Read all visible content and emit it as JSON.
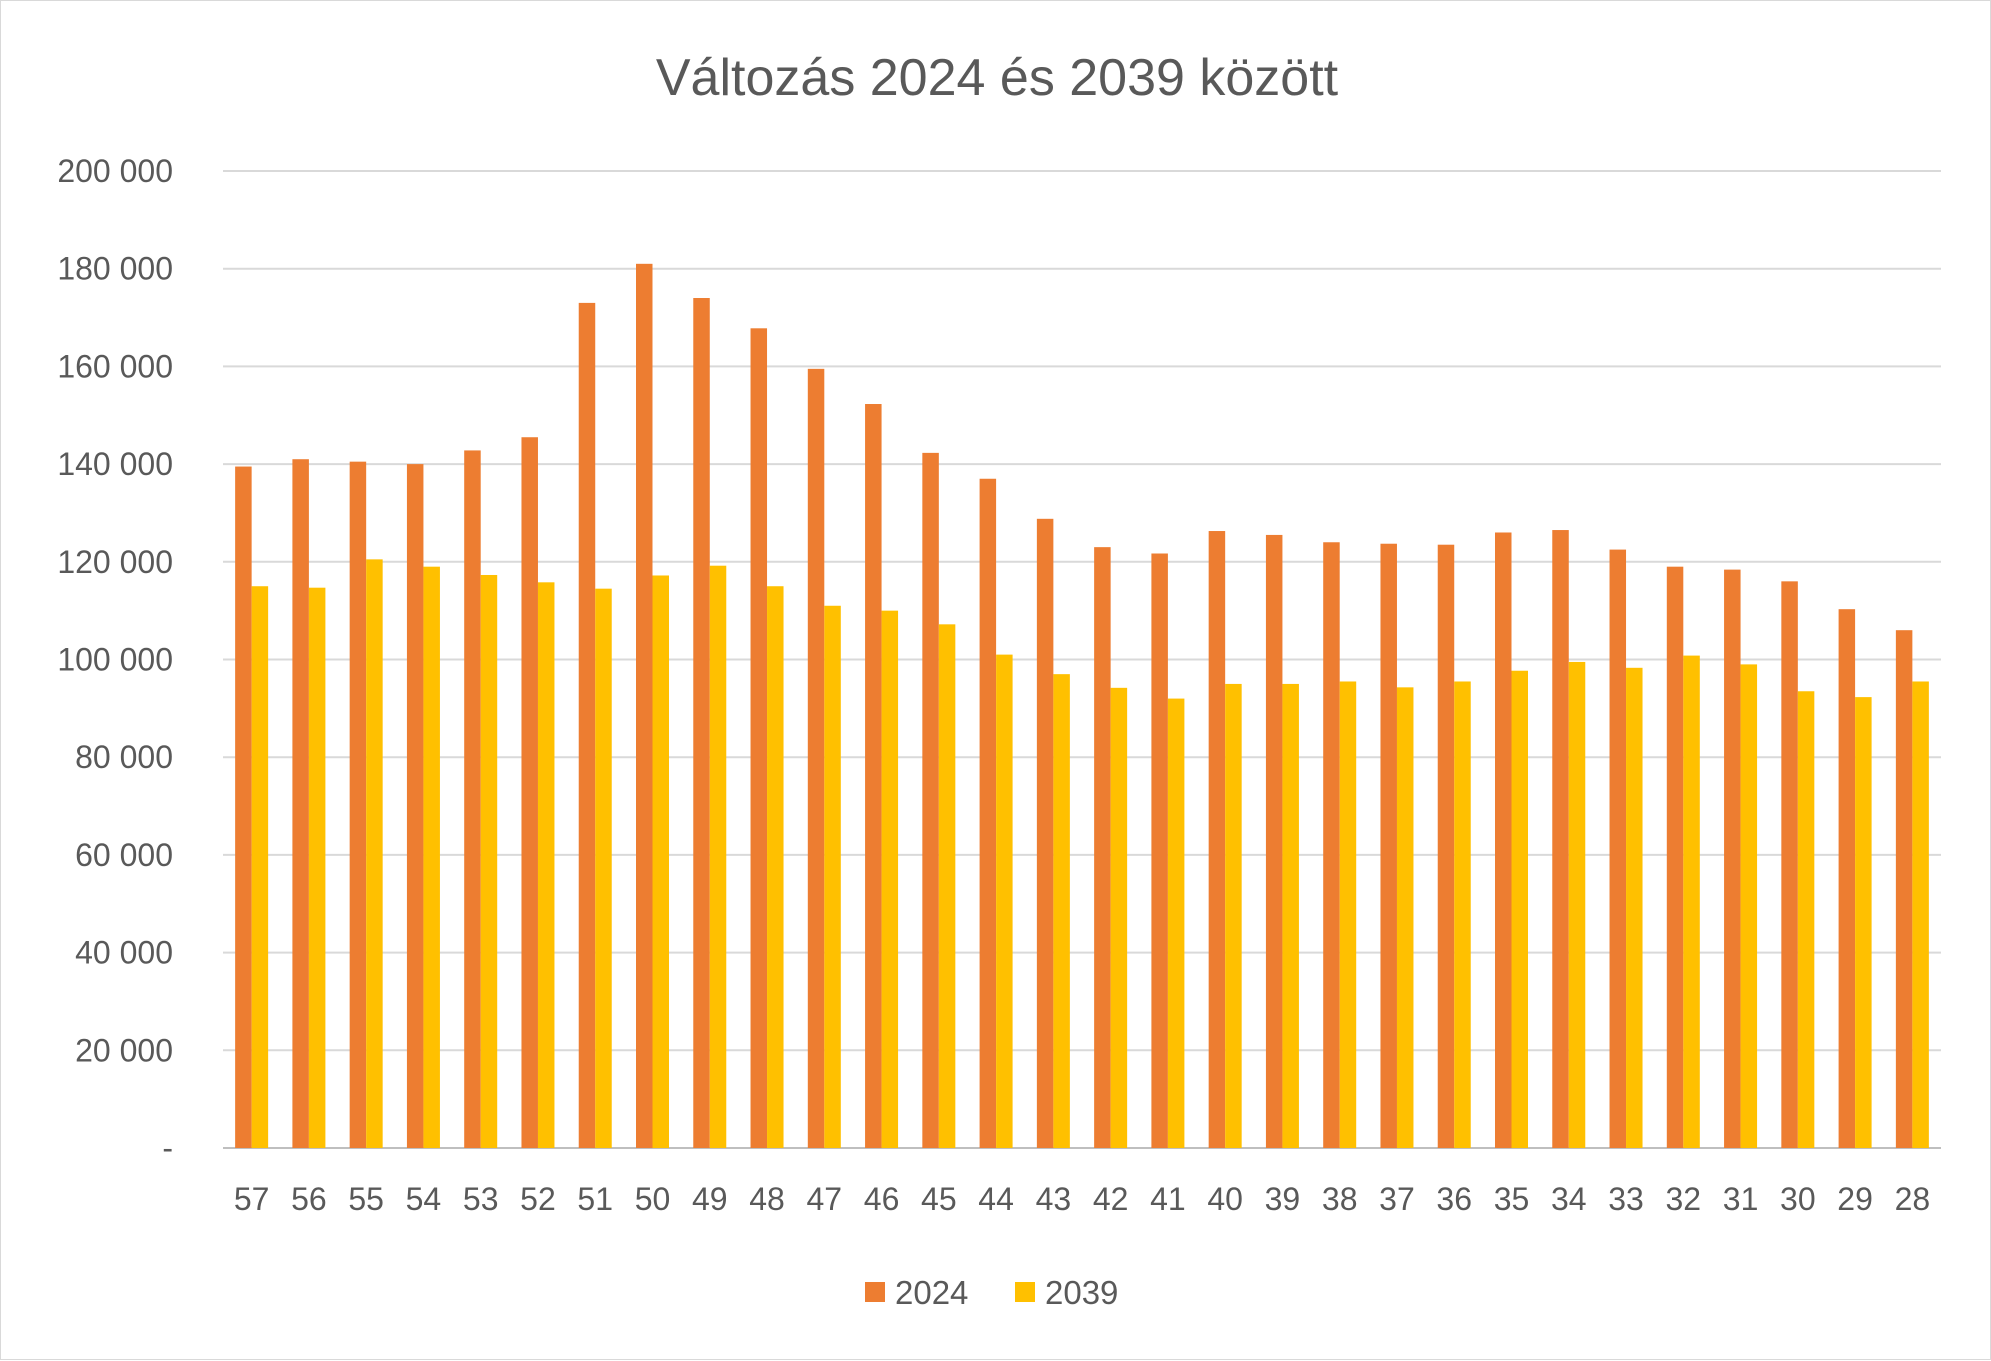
{
  "chart_data": {
    "type": "bar",
    "title": "Változás 2024 és 2039 között",
    "xlabel": "",
    "ylabel": "",
    "ylim": [
      0,
      200000
    ],
    "y_ticks": [
      0,
      20000,
      40000,
      60000,
      80000,
      100000,
      120000,
      140000,
      160000,
      180000,
      200000
    ],
    "y_tick_labels": [
      "-",
      "20 000",
      "40 000",
      "60 000",
      "80 000",
      "100 000",
      "120 000",
      "140 000",
      "160 000",
      "180 000",
      "200 000"
    ],
    "grid": true,
    "legend_position": "bottom",
    "categories": [
      "57",
      "56",
      "55",
      "54",
      "53",
      "52",
      "51",
      "50",
      "49",
      "48",
      "47",
      "46",
      "45",
      "44",
      "43",
      "42",
      "41",
      "40",
      "39",
      "38",
      "37",
      "36",
      "35",
      "34",
      "33",
      "32",
      "31",
      "30",
      "29",
      "28"
    ],
    "series": [
      {
        "name": "2024",
        "color": "#ed7d31",
        "values": [
          139500,
          141000,
          140500,
          140000,
          142800,
          145500,
          173000,
          181000,
          174000,
          167800,
          159500,
          152300,
          142300,
          137000,
          128800,
          123000,
          121700,
          126300,
          125500,
          124000,
          123700,
          123500,
          126000,
          126500,
          122500,
          119000,
          118400,
          116000,
          110300,
          106000
        ]
      },
      {
        "name": "2039",
        "color": "#ffc000",
        "values": [
          115000,
          114700,
          120500,
          119000,
          117300,
          115800,
          114500,
          117200,
          119200,
          115000,
          111000,
          110000,
          107200,
          101000,
          97000,
          94200,
          92000,
          95000,
          95000,
          95500,
          94300,
          95500,
          97700,
          99500,
          98300,
          100800,
          99000,
          93500,
          92300,
          95500
        ]
      }
    ]
  }
}
